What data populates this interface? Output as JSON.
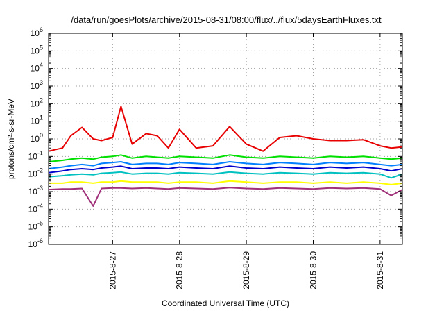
{
  "chart_data": {
    "type": "line",
    "title": "/data/run/goesPlots/archive/2015-08-31/08:00/flux/../flux/5daysEarthFluxes.txt",
    "xlabel": "Coordinated Universal Time (UTC)",
    "ylabel": "protons/cm²-s-sr-MeV",
    "yscale": "log",
    "ylim": [
      1e-06,
      1000000.0
    ],
    "xlim": [
      "2015-08-26 01:00",
      "2015-08-31 08:00"
    ],
    "x_ticks": [
      "2015-8-27",
      "2015-8-28",
      "2015-8-29",
      "2015-8-30",
      "2015-8-31"
    ],
    "y_ticks": [
      {
        "base": "10",
        "exp": "-6"
      },
      {
        "base": "10",
        "exp": "-5"
      },
      {
        "base": "10",
        "exp": "-4"
      },
      {
        "base": "10",
        "exp": "-3"
      },
      {
        "base": "10",
        "exp": "-2"
      },
      {
        "base": "10",
        "exp": "-1"
      },
      {
        "base": "10",
        "exp": "0"
      },
      {
        "base": "10",
        "exp": "1"
      },
      {
        "base": "10",
        "exp": "2"
      },
      {
        "base": "10",
        "exp": "3"
      },
      {
        "base": "10",
        "exp": "4"
      },
      {
        "base": "10",
        "exp": "5"
      },
      {
        "base": "10",
        "exp": "6"
      }
    ],
    "grid": true,
    "x": [
      "2015-08-26 01:00",
      "2015-08-26 06:00",
      "2015-08-26 09:00",
      "2015-08-26 13:00",
      "2015-08-26 17:00",
      "2015-08-26 20:00",
      "2015-08-27 00:00",
      "2015-08-27 03:00",
      "2015-08-27 07:00",
      "2015-08-27 12:00",
      "2015-08-27 16:00",
      "2015-08-27 20:00",
      "2015-08-28 00:00",
      "2015-08-28 06:00",
      "2015-08-28 12:00",
      "2015-08-28 18:00",
      "2015-08-29 00:00",
      "2015-08-29 06:00",
      "2015-08-29 12:00",
      "2015-08-29 18:00",
      "2015-08-30 00:00",
      "2015-08-30 06:00",
      "2015-08-30 12:00",
      "2015-08-30 18:00",
      "2015-08-31 00:00",
      "2015-08-31 04:00",
      "2015-08-31 08:00"
    ],
    "series": [
      {
        "color": "#e80000",
        "values": [
          0.2,
          0.3,
          1.5,
          4.5,
          1.0,
          0.8,
          1.2,
          70,
          0.5,
          2.0,
          1.5,
          0.3,
          3.5,
          0.3,
          0.4,
          5.0,
          0.5,
          0.2,
          1.2,
          1.5,
          1.0,
          0.8,
          0.8,
          0.9,
          0.4,
          0.3,
          0.35
        ]
      },
      {
        "color": "#00e000",
        "values": [
          0.05,
          0.06,
          0.07,
          0.08,
          0.07,
          0.09,
          0.1,
          0.12,
          0.08,
          0.1,
          0.09,
          0.08,
          0.1,
          0.09,
          0.08,
          0.12,
          0.09,
          0.08,
          0.1,
          0.09,
          0.08,
          0.1,
          0.09,
          0.1,
          0.08,
          0.07,
          0.08
        ]
      },
      {
        "color": "#0080ff",
        "values": [
          0.02,
          0.025,
          0.03,
          0.035,
          0.03,
          0.04,
          0.045,
          0.05,
          0.035,
          0.04,
          0.04,
          0.035,
          0.045,
          0.04,
          0.035,
          0.05,
          0.04,
          0.035,
          0.045,
          0.04,
          0.035,
          0.045,
          0.04,
          0.045,
          0.035,
          0.03,
          0.035
        ]
      },
      {
        "color": "#0000cc",
        "values": [
          0.012,
          0.015,
          0.018,
          0.02,
          0.018,
          0.022,
          0.025,
          0.028,
          0.02,
          0.022,
          0.022,
          0.02,
          0.025,
          0.022,
          0.02,
          0.028,
          0.022,
          0.02,
          0.025,
          0.022,
          0.02,
          0.025,
          0.022,
          0.025,
          0.02,
          0.015,
          0.02
        ]
      },
      {
        "color": "#00c0c0",
        "values": [
          0.007,
          0.008,
          0.009,
          0.01,
          0.009,
          0.011,
          0.012,
          0.013,
          0.01,
          0.011,
          0.011,
          0.01,
          0.012,
          0.011,
          0.01,
          0.013,
          0.011,
          0.01,
          0.012,
          0.011,
          0.01,
          0.012,
          0.011,
          0.012,
          0.01,
          0.006,
          0.01
        ]
      },
      {
        "color": "#ffff00",
        "values": [
          0.003,
          0.003,
          0.0035,
          0.0035,
          0.003,
          0.0035,
          0.0035,
          0.004,
          0.0035,
          0.0035,
          0.0035,
          0.003,
          0.0035,
          0.0035,
          0.003,
          0.004,
          0.0035,
          0.003,
          0.0035,
          0.0035,
          0.003,
          0.0035,
          0.003,
          0.0035,
          0.003,
          0.0025,
          0.003
        ]
      },
      {
        "color": "#a0307a",
        "values": [
          0.0013,
          0.0014,
          0.0014,
          0.0015,
          0.00015,
          0.0015,
          0.0016,
          0.0016,
          0.0015,
          0.0016,
          0.0015,
          0.0014,
          0.0016,
          0.0015,
          0.0014,
          0.0017,
          0.0015,
          0.0014,
          0.0016,
          0.0015,
          0.0014,
          0.0016,
          0.0015,
          0.0016,
          0.0014,
          0.0006,
          0.0013
        ]
      }
    ]
  }
}
